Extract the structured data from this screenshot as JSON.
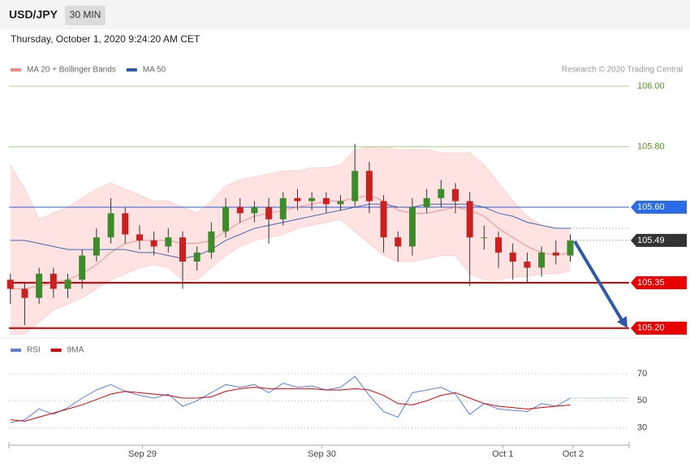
{
  "chart_data": {
    "type": "candlestick",
    "title": "USD/JPY",
    "interval": "30 MIN",
    "subtitle": "Thursday, October 1, 2020 9:24:20 AM CET",
    "credit": "Research © 2020 Trading Central",
    "xlim": [
      -0.1,
      43.1
    ],
    "xticks": [
      {
        "value": 9.2,
        "label": "Sep 29"
      },
      {
        "value": 21.7,
        "label": "Sep 30"
      },
      {
        "value": 34.3,
        "label": "Oct 1"
      },
      {
        "value": 39.2,
        "label": "Oct 2"
      }
    ],
    "ylim": [
      105.17,
      106.03
    ],
    "up_color": "#3c8c2c",
    "down_color": "#cc1f1f",
    "open": [
      105.36,
      105.33,
      105.3,
      105.38,
      105.33,
      105.36,
      105.44,
      105.5,
      105.58,
      105.51,
      105.49,
      105.47,
      105.5,
      105.42,
      105.45,
      105.52,
      105.6,
      105.58,
      105.6,
      105.56,
      105.63,
      105.62,
      105.63,
      105.61,
      105.62,
      105.72,
      105.62,
      105.5,
      105.47,
      105.6,
      105.63,
      105.66,
      105.62,
      105.5,
      105.5,
      105.45,
      105.42,
      105.4,
      105.45,
      105.44
    ],
    "high": [
      105.38,
      105.35,
      105.4,
      105.4,
      105.38,
      105.46,
      105.53,
      105.63,
      105.6,
      105.54,
      105.52,
      105.53,
      105.52,
      105.47,
      105.55,
      105.63,
      105.63,
      105.62,
      105.63,
      105.65,
      105.66,
      105.65,
      105.65,
      105.64,
      105.81,
      105.75,
      105.64,
      105.52,
      105.63,
      105.66,
      105.69,
      105.68,
      105.65,
      105.54,
      105.52,
      105.48,
      105.45,
      105.47,
      105.49,
      105.51
    ],
    "low": [
      105.28,
      105.21,
      105.28,
      105.3,
      105.3,
      105.33,
      105.42,
      105.48,
      105.48,
      105.46,
      105.44,
      105.45,
      105.33,
      105.39,
      105.43,
      105.5,
      105.55,
      105.55,
      105.48,
      105.54,
      105.59,
      105.59,
      105.58,
      105.59,
      105.6,
      105.58,
      105.45,
      105.42,
      105.44,
      105.58,
      105.6,
      105.58,
      105.34,
      105.46,
      105.4,
      105.36,
      105.35,
      105.37,
      105.41,
      105.42
    ],
    "close": [
      105.33,
      105.3,
      105.38,
      105.33,
      105.36,
      105.44,
      105.5,
      105.58,
      105.51,
      105.49,
      105.47,
      105.5,
      105.42,
      105.45,
      105.52,
      105.6,
      105.58,
      105.6,
      105.56,
      105.63,
      105.62,
      105.63,
      105.61,
      105.62,
      105.72,
      105.62,
      105.5,
      105.47,
      105.6,
      105.63,
      105.66,
      105.62,
      105.5,
      105.5,
      105.45,
      105.42,
      105.4,
      105.45,
      105.44,
      105.49
    ],
    "overlays": [
      {
        "name": "MA 20 + Bollinger Bands",
        "color": "#f08a8a",
        "band_color": "#ffe3e3",
        "values": [
          105.33,
          105.33,
          105.34,
          105.35,
          105.36,
          105.38,
          105.41,
          105.45,
          105.48,
          105.49,
          105.49,
          105.49,
          105.48,
          105.48,
          105.49,
          105.52,
          105.55,
          105.57,
          105.58,
          105.59,
          105.6,
          105.61,
          105.62,
          105.62,
          105.63,
          105.64,
          105.62,
          105.59,
          105.58,
          105.58,
          105.59,
          105.6,
          105.59,
          105.57,
          105.53,
          105.5,
          105.47,
          105.45,
          105.44,
          105.45
        ],
        "upper": [
          105.74,
          105.66,
          105.56,
          105.58,
          105.6,
          105.63,
          105.66,
          105.68,
          105.66,
          105.64,
          105.62,
          105.62,
          105.6,
          105.58,
          105.62,
          105.67,
          105.69,
          105.7,
          105.71,
          105.72,
          105.72,
          105.73,
          105.73,
          105.74,
          105.79,
          105.8,
          105.8,
          105.79,
          105.79,
          105.79,
          105.78,
          105.78,
          105.78,
          105.74,
          105.68,
          105.62,
          105.57,
          105.54,
          105.53,
          105.53
        ],
        "lower": [
          105.18,
          105.18,
          105.22,
          105.26,
          105.28,
          105.3,
          105.33,
          105.36,
          105.38,
          105.4,
          105.41,
          105.4,
          105.36,
          105.36,
          105.4,
          105.44,
          105.47,
          105.49,
          105.5,
          105.51,
          105.53,
          105.54,
          105.55,
          105.56,
          105.52,
          105.48,
          105.44,
          105.42,
          105.42,
          105.43,
          105.44,
          105.44,
          105.38,
          105.36,
          105.36,
          105.37,
          105.37,
          105.38,
          105.38,
          105.39
        ]
      },
      {
        "name": "MA 50",
        "color": "#2e5aa8",
        "values": [
          105.49,
          105.49,
          105.48,
          105.47,
          105.46,
          105.46,
          105.46,
          105.46,
          105.46,
          105.45,
          105.45,
          105.44,
          105.43,
          105.44,
          105.46,
          105.49,
          105.51,
          105.53,
          105.54,
          105.55,
          105.56,
          105.57,
          105.58,
          105.59,
          105.6,
          105.61,
          105.61,
          105.6,
          105.6,
          105.61,
          105.61,
          105.61,
          105.61,
          105.6,
          105.58,
          105.57,
          105.55,
          105.54,
          105.53,
          105.53
        ]
      }
    ],
    "levels": [
      {
        "value": 106.0,
        "label": "106.00",
        "color": "#a8d68a",
        "text_color": "#4f9a1f",
        "width": 1,
        "tag": false
      },
      {
        "value": 105.8,
        "label": "105.80",
        "color": "#a8d68a",
        "text_color": "#4f9a1f",
        "width": 1,
        "tag": false
      },
      {
        "value": 105.6,
        "label": "105.60",
        "color": "#2a5fd8",
        "text_color": "#ffffff",
        "width": 1,
        "tag": true,
        "tag_color": "#2a6be8"
      },
      {
        "value": 105.49,
        "label": "105.49",
        "color": "#333333",
        "text_color": "#ffffff",
        "width": 0,
        "tag": true,
        "tag_color": "#333333"
      },
      {
        "value": 105.35,
        "label": "105.35",
        "color": "#e00000",
        "text_color": "#ffffff",
        "width": 2,
        "tag": true,
        "tag_color": "#e80000"
      },
      {
        "value": 105.2,
        "label": "105.20",
        "color": "#e00000",
        "text_color": "#ffffff",
        "width": 2,
        "tag": true,
        "tag_color": "#e80000"
      }
    ],
    "rsi_ylim": [
      19,
      79
    ],
    "rsi_yticks": [
      30,
      50,
      70
    ],
    "rsi_series": [
      {
        "name": "RSI",
        "color": "#5b7fdc",
        "values": [
          34,
          36,
          44,
          40,
          45,
          52,
          58,
          62,
          57,
          54,
          52,
          55,
          46,
          50,
          56,
          62,
          60,
          62,
          56,
          63,
          60,
          61,
          58,
          60,
          68,
          54,
          42,
          38,
          56,
          58,
          60,
          55,
          40,
          48,
          44,
          43,
          42,
          48,
          46,
          52
        ]
      },
      {
        "name": "9MA",
        "color": "#e00000",
        "values": [
          36,
          35,
          38,
          41,
          44,
          47,
          51,
          55,
          57,
          56,
          55,
          54,
          52,
          52,
          53,
          57,
          59,
          60,
          59,
          59,
          59,
          59,
          58,
          58,
          59,
          58,
          54,
          48,
          47,
          50,
          54,
          56,
          52,
          48,
          46,
          45,
          44,
          45,
          46,
          47
        ]
      }
    ]
  }
}
